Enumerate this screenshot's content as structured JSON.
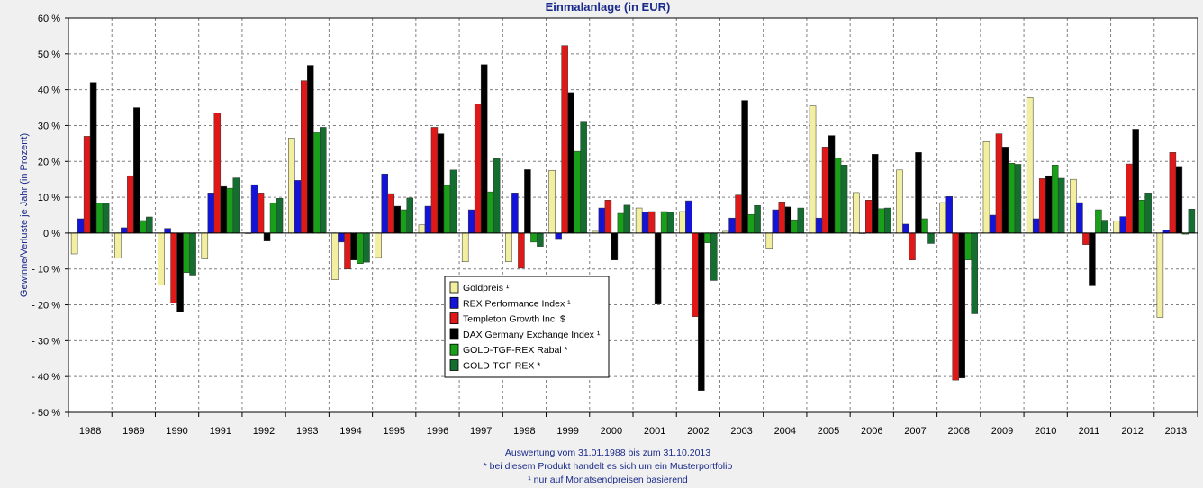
{
  "colors": {
    "background": "#f0f0f0",
    "plot_bg": "#ffffff",
    "title_color": "#1a2a8a",
    "grid": "#808080"
  },
  "chart_data": {
    "type": "bar",
    "title": "Einmalanlage (in EUR)",
    "ylabel": "Gewinne/Verluste je Jahr (in Prozent)",
    "xlabel": "",
    "ylim": [
      -50,
      60
    ],
    "yticks": [
      60,
      50,
      40,
      30,
      20,
      10,
      0,
      -10,
      -20,
      -30,
      -40,
      -50
    ],
    "ytick_labels": [
      "60 %",
      "50 %",
      "40 %",
      "30 %",
      "20 %",
      "10 %",
      "0 %",
      "- 10 %",
      "- 20 %",
      "- 30 %",
      "- 40 %",
      "- 50 %"
    ],
    "categories": [
      "1988",
      "1989",
      "1990",
      "1991",
      "1992",
      "1993",
      "1994",
      "1995",
      "1996",
      "1997",
      "1998",
      "1999",
      "2000",
      "2001",
      "2002",
      "2003",
      "2004",
      "2005",
      "2006",
      "2007",
      "2008",
      "2009",
      "2010",
      "2011",
      "2012",
      "2013"
    ],
    "legend_position": "center",
    "series": [
      {
        "name": "Goldpreis ¹",
        "color": "#f2f0a0",
        "values": [
          -5.8,
          -7,
          -14.5,
          -7.2,
          0,
          26.5,
          -13,
          -6.8,
          2.3,
          -8,
          -8,
          17.5,
          0.5,
          7,
          6,
          0.5,
          -4.2,
          35.5,
          11.3,
          17.6,
          8.5,
          25.5,
          37.8,
          15,
          3.3,
          -23.5
        ]
      },
      {
        "name": "REX Performance Index ¹",
        "color": "#1414d8",
        "values": [
          4,
          1.5,
          1.3,
          11.2,
          13.5,
          14.7,
          -2.5,
          16.5,
          7.5,
          6.5,
          11.2,
          -1.8,
          7,
          5.8,
          9,
          4.2,
          6.5,
          4.2,
          0,
          2.5,
          10.2,
          5,
          4,
          8.5,
          4.6,
          0.8
        ]
      },
      {
        "name": "Templeton Growth Inc. $",
        "color": "#e01818",
        "values": [
          27,
          16,
          -19.5,
          33.5,
          11.2,
          42.5,
          -10,
          11,
          29.5,
          36,
          -9.8,
          52.3,
          9.2,
          6,
          -23.3,
          10.6,
          8.7,
          24,
          9.2,
          -7.5,
          -41,
          27.7,
          15.2,
          -3.2,
          19.3,
          22.5
        ]
      },
      {
        "name": "DAX Germany Exchange Index ¹",
        "color": "#000000",
        "values": [
          42,
          35,
          -22,
          13,
          -2.2,
          46.8,
          -7.5,
          7.5,
          27.7,
          47,
          17.7,
          39.2,
          -7.5,
          -19.8,
          -43.9,
          37,
          7.3,
          27.2,
          22,
          22.5,
          -40.4,
          24,
          16,
          -14.7,
          29,
          18.6
        ]
      },
      {
        "name": "GOLD-TGF-REX Rabal *",
        "color": "#18a018",
        "values": [
          8.3,
          3.5,
          -11,
          12.5,
          8.4,
          28,
          -8.5,
          6.5,
          13.3,
          11.5,
          -2.5,
          22.8,
          5.5,
          6,
          -2.7,
          5.2,
          3.7,
          21,
          6.8,
          4,
          -7.5,
          19.5,
          19,
          6.5,
          9.2,
          -0.3
        ]
      },
      {
        "name": "GOLD-TGF-REX *",
        "color": "#146e30",
        "values": [
          8.3,
          4.5,
          -11.7,
          15.4,
          9.7,
          29.5,
          -8.1,
          9.8,
          17.6,
          20.8,
          -3.7,
          31.2,
          7.8,
          5.8,
          -13.2,
          7.7,
          7,
          19,
          7,
          -2.9,
          -22.5,
          19.2,
          15.3,
          3.6,
          11.2,
          6.7
        ]
      }
    ]
  },
  "footer": {
    "line1": "Auswertung vom 31.01.1988 bis zum 31.10.2013",
    "line2": "* bei diesem Produkt handelt es sich um ein Musterportfolio",
    "line3": "¹ nur auf Monatsendpreisen basierend"
  }
}
